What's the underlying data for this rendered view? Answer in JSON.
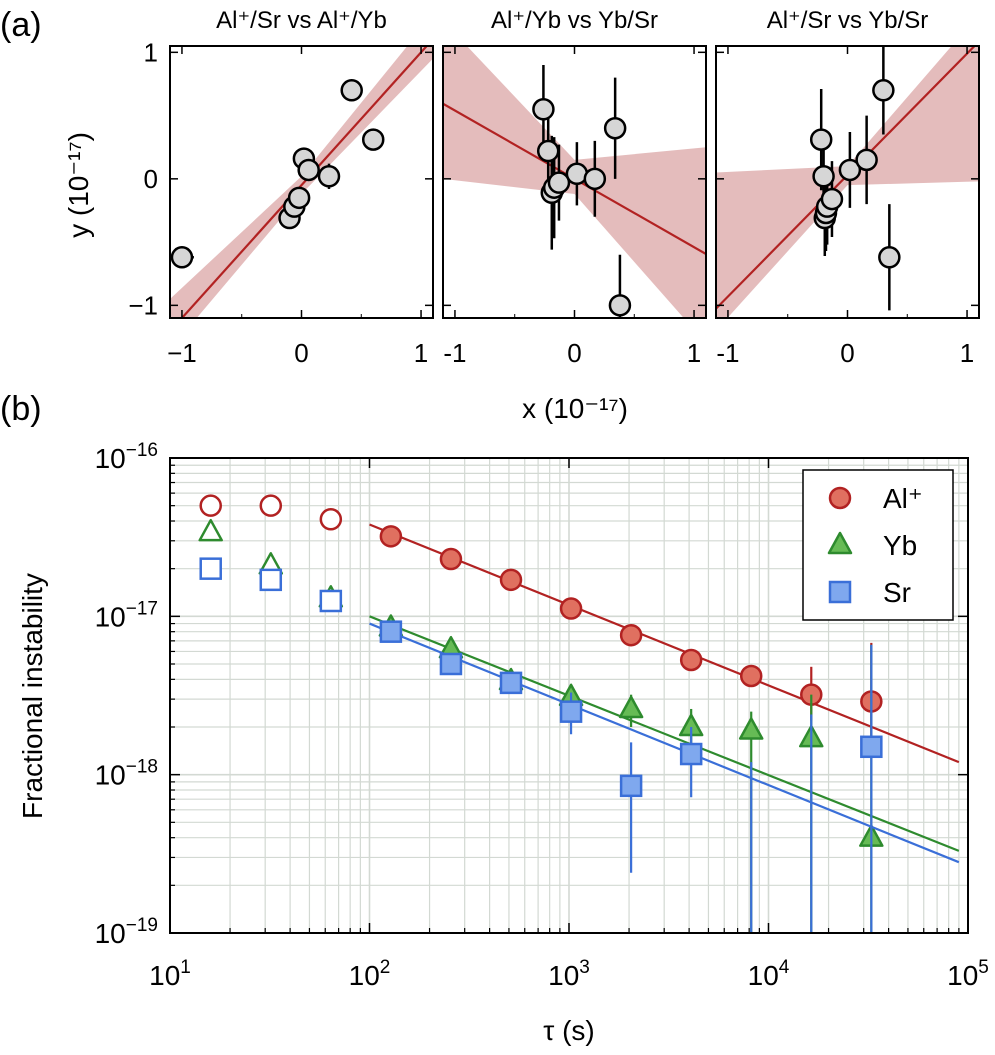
{
  "colors": {
    "al": "#b22222",
    "al_fill": "#e07060",
    "yb": "#2e8b2e",
    "yb_fill": "#66bb55",
    "sr": "#3a6fd8",
    "sr_fill": "#7fa8ee",
    "band": "#dba5a5",
    "marker_gray": "#d6d6d6",
    "grid": "#d3d9d3"
  },
  "panel_labels": {
    "a": "(a)",
    "b": "(b)"
  },
  "chart_data": [
    {
      "type": "scatter",
      "title": "Al⁺/Sr vs Al⁺/Yb",
      "xlabel": "x (10⁻¹⁷)",
      "ylabel": "y (10⁻¹⁷)",
      "xlim": [
        -1.1,
        1.1
      ],
      "ylim": [
        -1.1,
        1.05
      ],
      "xticks": [
        -1,
        0,
        1
      ],
      "yticks": [
        -1,
        0,
        1
      ],
      "xtick_labels": [
        "−1",
        "0",
        "1"
      ],
      "ytick_labels": [
        "−1",
        "0",
        "1"
      ],
      "fit": {
        "slope": 1.05,
        "intercept": -0.05
      },
      "band": [
        [
          -1.1,
          -1.35,
          -0.95
        ],
        [
          0,
          -0.12,
          0.02
        ],
        [
          1.1,
          0.95,
          1.3
        ]
      ],
      "points": [
        {
          "x": -1.0,
          "y": -0.62,
          "xerr": 0.1,
          "yerr": 0
        },
        {
          "x": -0.1,
          "y": -0.31,
          "xerr": 0,
          "yerr": 0
        },
        {
          "x": -0.06,
          "y": -0.22,
          "xerr": 0,
          "yerr": 0
        },
        {
          "x": -0.02,
          "y": -0.15,
          "xerr": 0,
          "yerr": 0
        },
        {
          "x": 0.02,
          "y": 0.16,
          "xerr": 0,
          "yerr": 0
        },
        {
          "x": 0.06,
          "y": 0.07,
          "xerr": 0,
          "yerr": 0
        },
        {
          "x": 0.23,
          "y": 0.02,
          "xerr": 0,
          "yerr": 0.1
        },
        {
          "x": 0.42,
          "y": 0.7,
          "xerr": 0,
          "yerr": 0
        },
        {
          "x": 0.6,
          "y": 0.31,
          "xerr": 0,
          "yerr": 0
        }
      ]
    },
    {
      "type": "scatter",
      "title": "Al⁺/Yb vs Yb/Sr",
      "xlabel": "x (10⁻¹⁷)",
      "ylabel": "",
      "xlim": [
        -1.1,
        1.1
      ],
      "ylim": [
        -1.1,
        1.05
      ],
      "xticks": [
        -1,
        0,
        1
      ],
      "yticks": [
        -1,
        0,
        1
      ],
      "xtick_labels": [
        "-1",
        "0",
        "1"
      ],
      "ytick_labels": [
        "",
        "",
        ""
      ],
      "fit": {
        "slope": -0.54,
        "intercept": 0.0
      },
      "band": [
        [
          -1.1,
          0.0,
          1.25
        ],
        [
          0,
          -0.12,
          0.15
        ],
        [
          1.1,
          -1.3,
          0.25
        ]
      ],
      "points": [
        {
          "x": -0.26,
          "y": 0.55,
          "xerr": 0,
          "yerr": 0.35
        },
        {
          "x": -0.22,
          "y": 0.22,
          "xerr": 0.07,
          "yerr": 0.35
        },
        {
          "x": -0.19,
          "y": -0.11,
          "xerr": 0,
          "yerr": 0.45
        },
        {
          "x": -0.17,
          "y": -0.07,
          "xerr": 0,
          "yerr": 0.4
        },
        {
          "x": -0.13,
          "y": -0.03,
          "xerr": 0,
          "yerr": 0.3
        },
        {
          "x": 0.02,
          "y": 0.04,
          "xerr": 0,
          "yerr": 0.25
        },
        {
          "x": 0.17,
          "y": 0.0,
          "xerr": 0,
          "yerr": 0.3
        },
        {
          "x": 0.34,
          "y": 0.4,
          "xerr": 0,
          "yerr": 0.4
        },
        {
          "x": 0.38,
          "y": -1.0,
          "xerr": 0,
          "yerr": 0.4
        }
      ]
    },
    {
      "type": "scatter",
      "title": "Al⁺/Sr vs Yb/Sr",
      "xlabel": "x (10⁻¹⁷)",
      "ylabel": "",
      "xlim": [
        -1.1,
        1.1
      ],
      "ylim": [
        -1.1,
        1.05
      ],
      "xticks": [
        -1,
        0,
        1
      ],
      "yticks": [
        -1,
        0,
        1
      ],
      "xtick_labels": [
        "-1",
        "0",
        "1"
      ],
      "ytick_labels": [
        "",
        "",
        ""
      ],
      "fit": {
        "slope": 0.96,
        "intercept": 0.03
      },
      "band": [
        [
          -1.1,
          -1.2,
          0.05
        ],
        [
          0,
          -0.05,
          0.1
        ],
        [
          1.1,
          -0.02,
          1.3
        ]
      ],
      "points": [
        {
          "x": -0.22,
          "y": 0.31,
          "xerr": 0,
          "yerr": 0.4
        },
        {
          "x": -0.2,
          "y": 0.02,
          "xerr": 0.06,
          "yerr": 0.35
        },
        {
          "x": -0.19,
          "y": -0.31,
          "xerr": 0,
          "yerr": 0.3
        },
        {
          "x": -0.18,
          "y": -0.27,
          "xerr": 0,
          "yerr": 0.3
        },
        {
          "x": -0.17,
          "y": -0.22,
          "xerr": 0,
          "yerr": 0.3
        },
        {
          "x": -0.13,
          "y": -0.16,
          "xerr": 0,
          "yerr": 0.3
        },
        {
          "x": 0.02,
          "y": 0.07,
          "xerr": 0,
          "yerr": 0.3
        },
        {
          "x": 0.16,
          "y": 0.15,
          "xerr": 0,
          "yerr": 0.35
        },
        {
          "x": 0.3,
          "y": 0.7,
          "xerr": 0,
          "yerr": 0.35
        },
        {
          "x": 0.35,
          "y": -0.62,
          "xerr": 0.08,
          "yerr": 0.42
        }
      ]
    },
    {
      "type": "scatter",
      "scale": "log-log",
      "xlabel": "τ (s)",
      "ylabel": "Fractional instability",
      "xlim": [
        10,
        100000
      ],
      "ylim": [
        1e-19,
        1e-16
      ],
      "xtick_exponents": [
        "1",
        "2",
        "3",
        "4",
        "5"
      ],
      "ytick_exponents": [
        "−16",
        "−17",
        "−18",
        "−19"
      ],
      "tick_base": "10",
      "legend_position": "top-right",
      "series": [
        {
          "name": "Al⁺",
          "marker": "circle",
          "x": [
            16,
            32,
            64,
            128,
            256,
            512,
            1024,
            2048,
            4096,
            8192,
            16384,
            32768
          ],
          "y": [
            5e-17,
            5e-17,
            4.1e-17,
            3.2e-17,
            2.3e-17,
            1.7e-17,
            1.12e-17,
            7.6e-18,
            5.3e-18,
            4.2e-18,
            3.2e-18,
            2.9e-18
          ],
          "y_low": [
            null,
            null,
            null,
            null,
            null,
            null,
            null,
            null,
            null,
            null,
            2.2e-18,
            1.3e-18
          ],
          "y_high": [
            null,
            null,
            null,
            null,
            null,
            null,
            null,
            null,
            null,
            null,
            4.8e-18,
            6.8e-18
          ],
          "open": [
            true,
            true,
            true,
            false,
            false,
            false,
            false,
            false,
            false,
            false,
            false,
            false
          ],
          "fit": {
            "x": [
              100,
              90000
            ],
            "y": [
              3.8e-17,
              1.2e-18
            ]
          }
        },
        {
          "name": "Yb",
          "marker": "triangle",
          "x": [
            16,
            32,
            64,
            128,
            256,
            512,
            1024,
            2048,
            4096,
            8192,
            16384,
            32768
          ],
          "y": [
            3.4e-17,
            2.1e-17,
            1.3e-17,
            8.5e-18,
            6.2e-18,
            3.9e-18,
            3.1e-18,
            2.6e-18,
            2e-18,
            1.9e-18,
            1.7e-18,
            4e-19
          ],
          "y_low": [
            null,
            null,
            null,
            null,
            null,
            null,
            null,
            2e-18,
            1.5e-18,
            1e-19,
            1e-19,
            1e-19
          ],
          "y_high": [
            null,
            null,
            null,
            null,
            null,
            null,
            null,
            3.2e-18,
            2.6e-18,
            2.5e-18,
            3.2e-18,
            6.6e-18
          ],
          "open": [
            true,
            true,
            true,
            false,
            false,
            false,
            false,
            false,
            false,
            false,
            false,
            false
          ],
          "fit": {
            "x": [
              100,
              90000
            ],
            "y": [
              1e-17,
              3.3e-19
            ]
          }
        },
        {
          "name": "Sr",
          "marker": "square",
          "x": [
            16,
            32,
            64,
            128,
            256,
            512,
            1024,
            2048,
            4096,
            8192,
            16384,
            32768
          ],
          "y": [
            2e-17,
            1.7e-17,
            1.25e-17,
            8e-18,
            5e-18,
            3.8e-18,
            2.5e-18,
            8.5e-19,
            1.35e-18,
            1e-19,
            1e-19,
            1.5e-18
          ],
          "y_low": [
            null,
            null,
            null,
            null,
            null,
            null,
            1.8e-18,
            2.4e-19,
            7.2e-19,
            1e-19,
            1e-19,
            1e-19
          ],
          "y_high": [
            null,
            null,
            null,
            null,
            null,
            null,
            3.3e-18,
            1.6e-18,
            2e-18,
            1.2e-18,
            2.4e-18,
            6.6e-18
          ],
          "open": [
            true,
            true,
            true,
            false,
            false,
            false,
            false,
            false,
            false,
            false,
            false,
            false
          ],
          "hidden": [
            false,
            false,
            false,
            false,
            false,
            false,
            false,
            false,
            false,
            true,
            true,
            false
          ],
          "fit": {
            "x": [
              100,
              90000
            ],
            "y": [
              9e-18,
              2.8e-19
            ]
          }
        }
      ]
    }
  ]
}
